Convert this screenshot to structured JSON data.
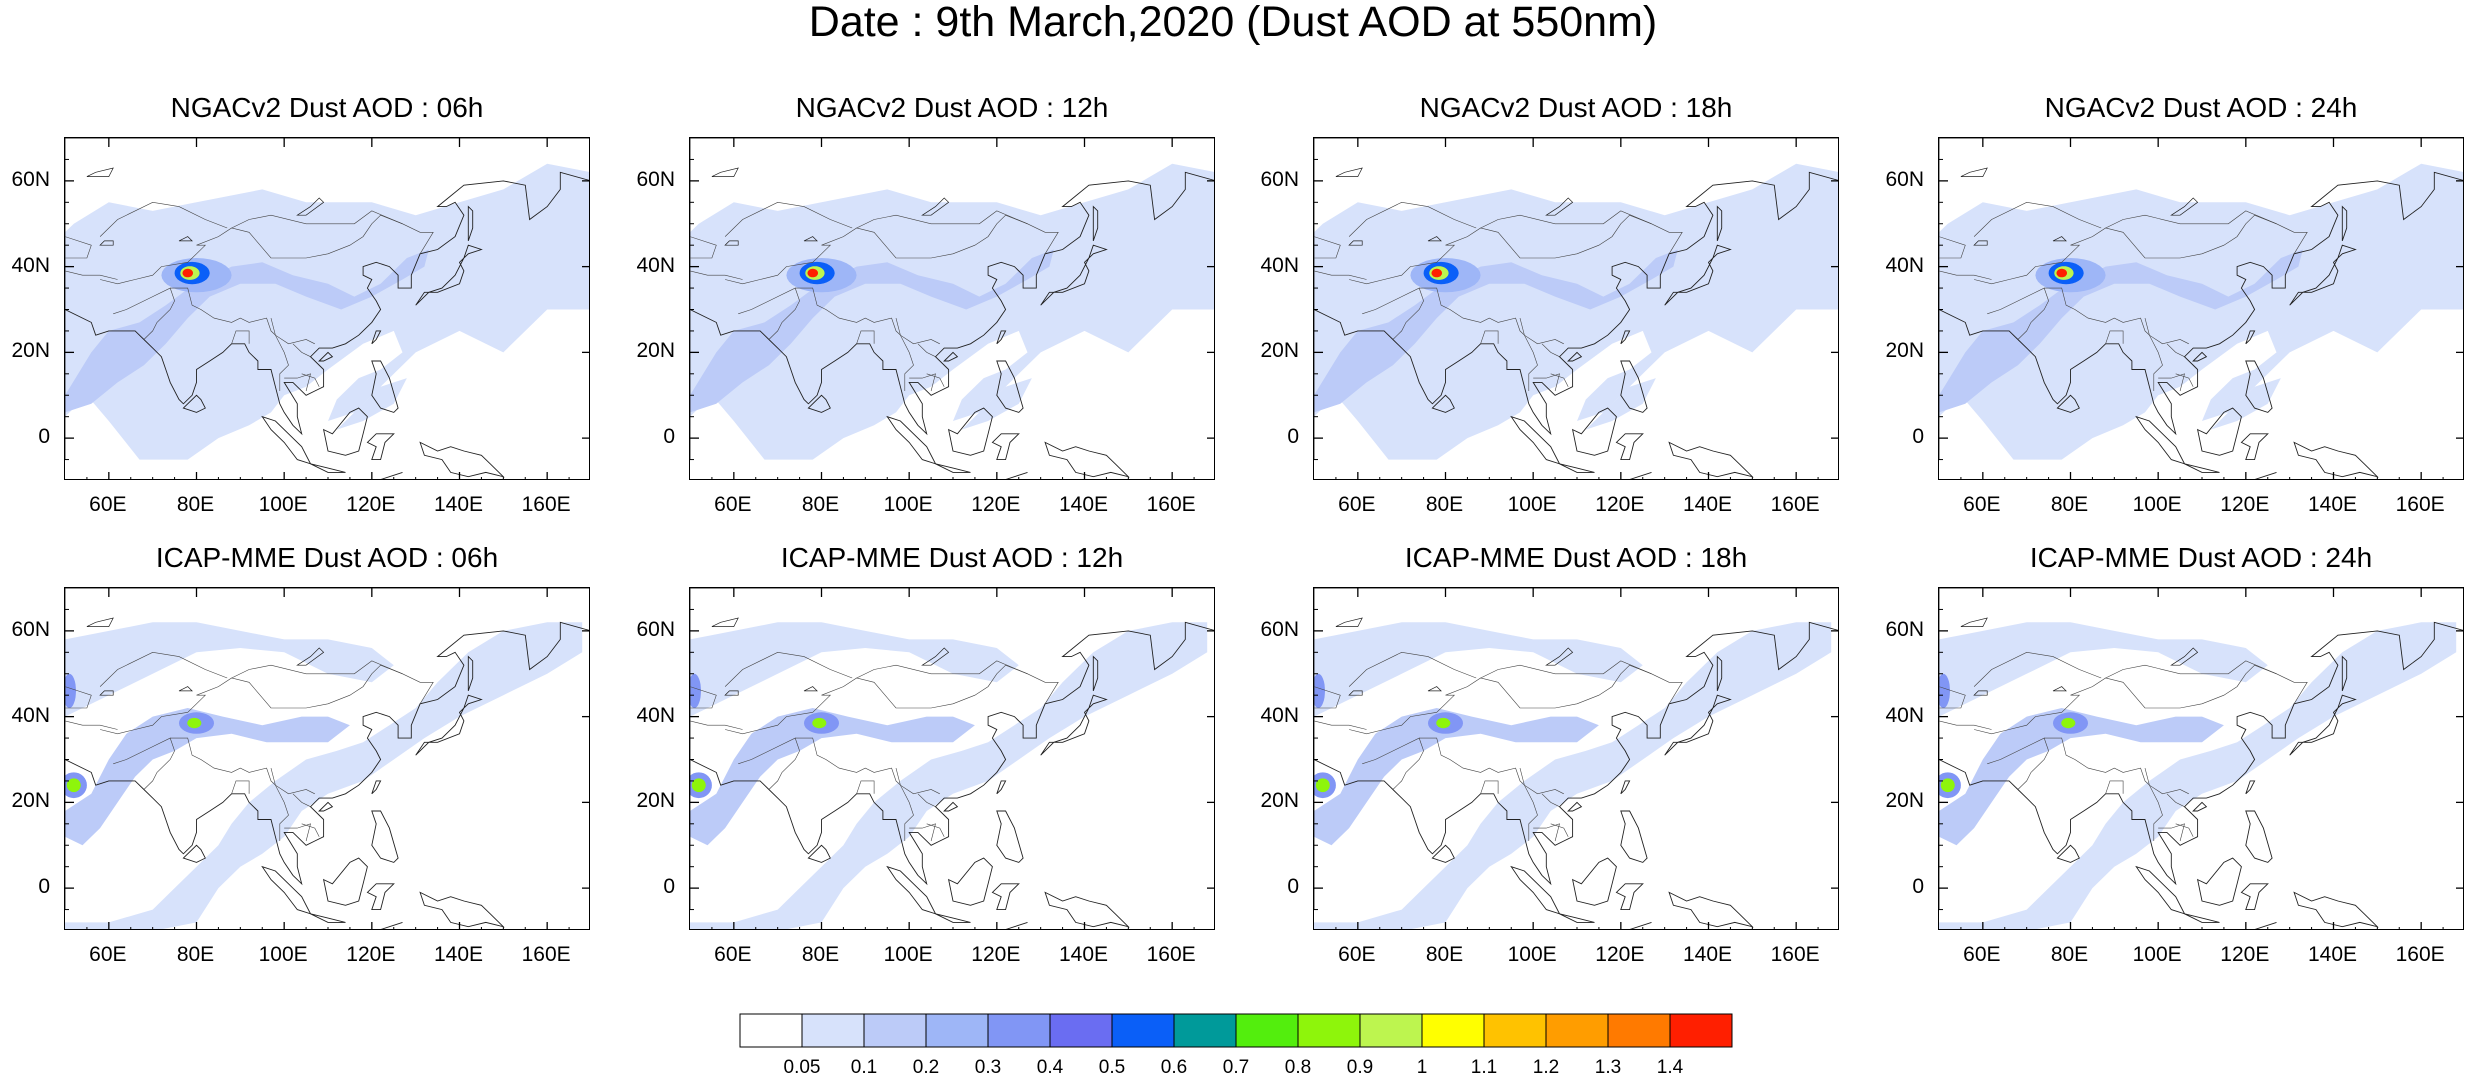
{
  "title": "Date : 9th March,2020 (Dust AOD at 550nm)",
  "panels": [
    {
      "model": "NGACv2",
      "title": "NGACv2 Dust AOD : 06h",
      "lead": "06h",
      "hotspot_level": "1.4"
    },
    {
      "model": "NGACv2",
      "title": "NGACv2 Dust AOD : 12h",
      "lead": "12h",
      "hotspot_level": "1.4"
    },
    {
      "model": "NGACv2",
      "title": "NGACv2 Dust AOD : 18h",
      "lead": "18h",
      "hotspot_level": "1.4"
    },
    {
      "model": "NGACv2",
      "title": "NGACv2 Dust AOD : 24h",
      "lead": "24h",
      "hotspot_level": "1.4"
    },
    {
      "model": "ICAP-MME",
      "title": "ICAP-MME Dust AOD : 06h",
      "lead": "06h",
      "hotspot_level": "0.9"
    },
    {
      "model": "ICAP-MME",
      "title": "ICAP-MME Dust AOD : 12h",
      "lead": "12h",
      "hotspot_level": "0.9"
    },
    {
      "model": "ICAP-MME",
      "title": "ICAP-MME Dust AOD : 18h",
      "lead": "18h",
      "hotspot_level": "0.9"
    },
    {
      "model": "ICAP-MME",
      "title": "ICAP-MME Dust AOD : 24h",
      "lead": "24h",
      "hotspot_level": "0.9"
    }
  ],
  "map": {
    "lon_range": [
      50,
      170
    ],
    "lat_range": [
      -10,
      70
    ],
    "lon_ticks": [
      "60E",
      "80E",
      "100E",
      "120E",
      "140E",
      "160E"
    ],
    "lat_ticks": [
      "60N",
      "40N",
      "20N",
      "0"
    ],
    "lon_tick_values": [
      60,
      80,
      100,
      120,
      140,
      160
    ],
    "lat_tick_values": [
      60,
      40,
      20,
      0
    ]
  },
  "colorbar": {
    "labels": [
      "0.05",
      "0.1",
      "0.2",
      "0.3",
      "0.4",
      "0.5",
      "0.6",
      "0.7",
      "0.8",
      "0.9",
      "1",
      "1.1",
      "1.2",
      "1.3",
      "1.4"
    ],
    "colors": [
      "#ffffff",
      "#d7e2fb",
      "#bccbf8",
      "#9eb6f7",
      "#8196f5",
      "#6a6df2",
      "#0a5ff8",
      "#009a9a",
      "#53ee0d",
      "#8ef50b",
      "#bdf54f",
      "#ffff00",
      "#ffc200",
      "#ff9d00",
      "#ff7a00",
      "#ff1f00"
    ]
  }
}
